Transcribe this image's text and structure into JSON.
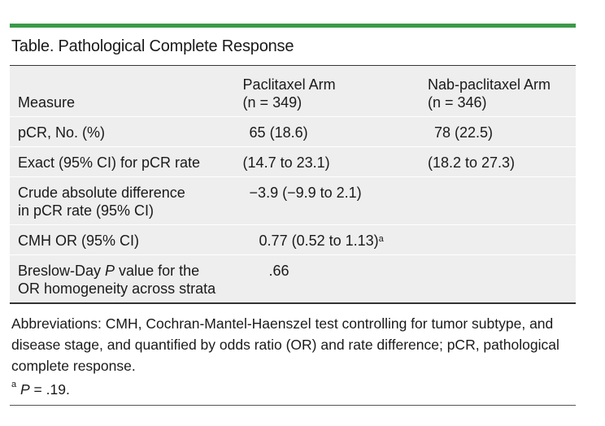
{
  "title": "Table. Pathological Complete Response",
  "columns": {
    "measure": "Measure",
    "paclitaxel": {
      "line1": "Paclitaxel Arm",
      "line2": "(n = 349)"
    },
    "nab": {
      "line1": "Nab-paclitaxel Arm",
      "line2": "(n = 346)"
    }
  },
  "rows": [
    {
      "measure": "pCR, No. (%)",
      "paclitaxel": "65 (18.6)",
      "nab": "78 (22.5)"
    },
    {
      "measure": "Exact (95% CI) for pCR rate",
      "paclitaxel": "(14.7 to 23.1)",
      "nab": "(18.2 to 27.3)"
    },
    {
      "measure_line1": "Crude absolute difference",
      "measure_line2": "in pCR rate (95% CI)",
      "value": "−3.9 (−9.9 to 2.1)"
    },
    {
      "measure": "CMH OR (95% CI)",
      "value": "0.77 (0.52 to 1.13)",
      "marker": "a"
    },
    {
      "measure_line1_pre": "Breslow-Day ",
      "measure_line1_italic": "P",
      "measure_line1_post": " value for the",
      "measure_line2": "OR homogeneity across strata",
      "value": ".66"
    }
  ],
  "notes": {
    "abbreviations": "Abbreviations: CMH, Cochran-Mantel-Haenszel test controlling for tumor subtype, and disease stage, and quantified by odds ratio (OR) and rate difference; pCR, pathological complete response.",
    "footnote_marker": "a",
    "footnote_italic": "P",
    "footnote_text": " = .19."
  },
  "colors": {
    "accent_rule": "#3a9a48",
    "table_bg": "#eeeeee"
  }
}
